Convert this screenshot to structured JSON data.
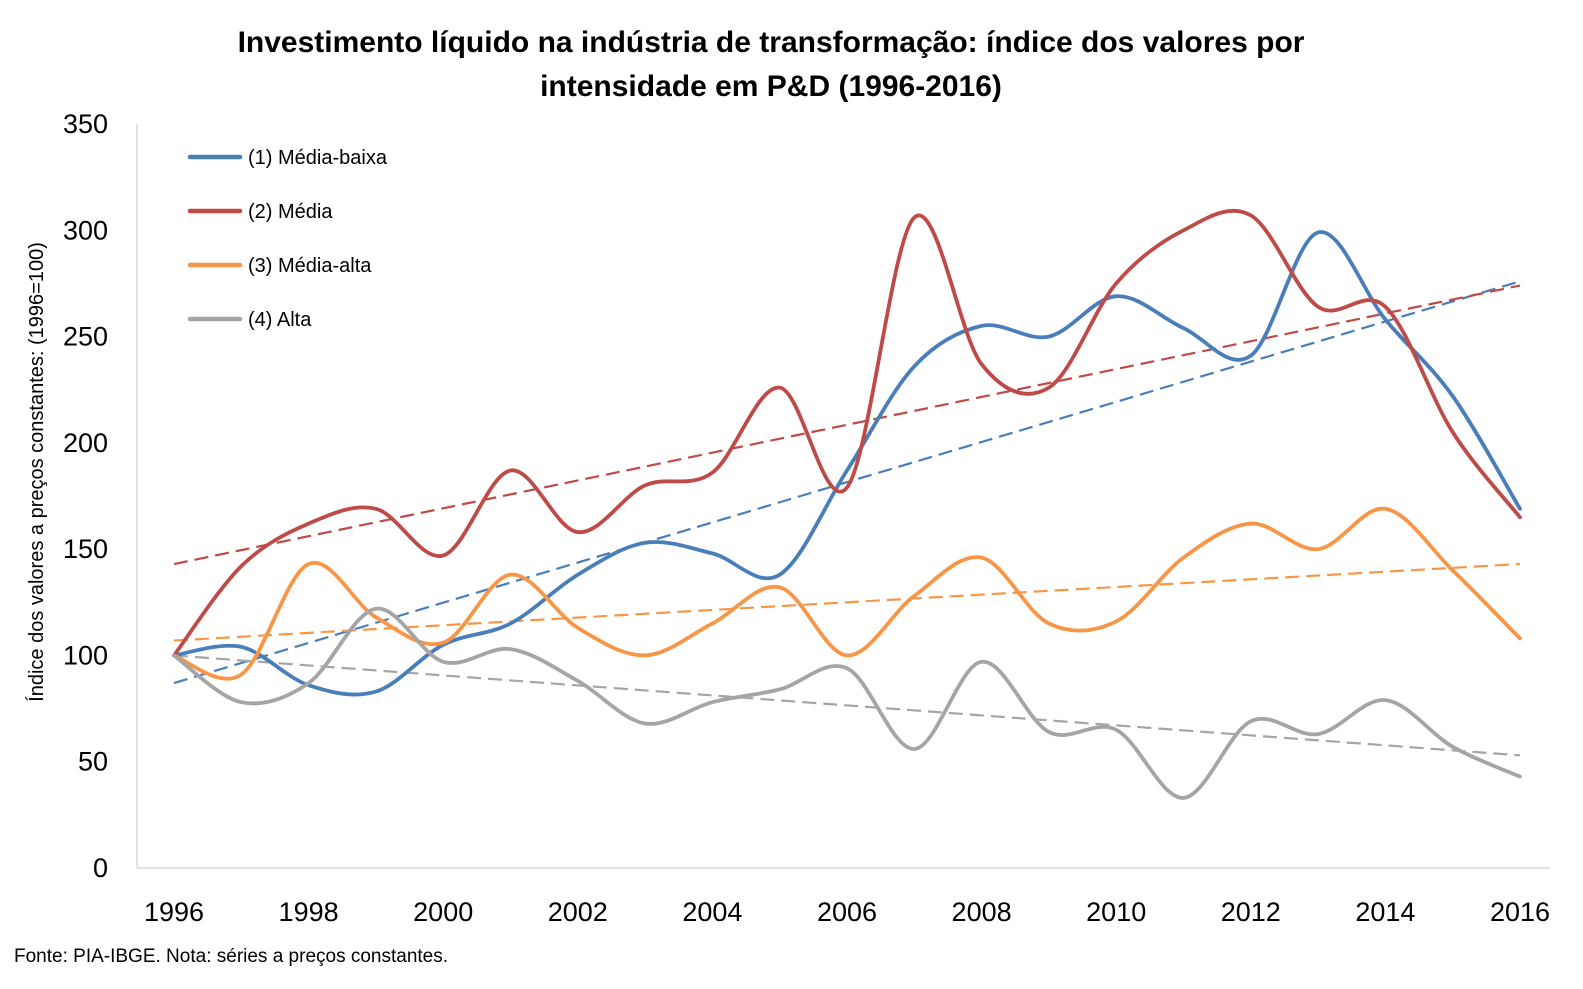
{
  "chart_data": {
    "type": "line",
    "title_lines": [
      "Investimento líquido na indústria de transformação: índice dos valores por",
      "intensidade em P&D (1996-2016)"
    ],
    "ylabel": "Índice dos valores a preços  constantes: (1996=100)",
    "source": "Fonte: PIA-IBGE. Nota: séries a preços constantes.",
    "ylim": [
      0,
      350
    ],
    "yticks": [
      0,
      50,
      100,
      150,
      200,
      250,
      300,
      350
    ],
    "xlim": [
      1996,
      2016
    ],
    "xticks": [
      1996,
      1998,
      2000,
      2002,
      2004,
      2006,
      2008,
      2010,
      2012,
      2014,
      2016
    ],
    "grid": false,
    "legend_position": "top-left",
    "x": [
      1996,
      1997,
      1998,
      1999,
      2000,
      2001,
      2002,
      2003,
      2004,
      2005,
      2006,
      2007,
      2008,
      2009,
      2010,
      2011,
      2012,
      2013,
      2014,
      2015,
      2016
    ],
    "series": [
      {
        "name": "(1) Média-baixa",
        "color": "#4A7EBB",
        "values": [
          100,
          104,
          86,
          83,
          105,
          115,
          138,
          153,
          148,
          138,
          187,
          236,
          255,
          250,
          269,
          254,
          241,
          299,
          258,
          222,
          169
        ],
        "trend": [
          87,
          276
        ]
      },
      {
        "name": "(2) Média",
        "color": "#BE4B48",
        "values": [
          100,
          142,
          162,
          169,
          147,
          187,
          158,
          180,
          186,
          226,
          179,
          306,
          237,
          226,
          275,
          300,
          307,
          264,
          264,
          205,
          165
        ],
        "trend": [
          143,
          274
        ]
      },
      {
        "name": "(3) Média-alta",
        "color": "#F79646",
        "values": [
          100,
          91,
          143,
          118,
          106,
          138,
          113,
          100,
          115,
          132,
          100,
          128,
          146,
          115,
          116,
          146,
          162,
          150,
          169,
          140,
          108
        ],
        "trend": [
          107,
          143
        ]
      },
      {
        "name": "(4) Alta",
        "color": "#A5A5A5",
        "values": [
          100,
          78,
          87,
          122,
          97,
          103,
          88,
          68,
          78,
          84,
          94,
          56,
          97,
          64,
          65,
          33,
          69,
          63,
          79,
          57,
          43
        ],
        "trend": [
          100,
          53
        ]
      }
    ]
  }
}
